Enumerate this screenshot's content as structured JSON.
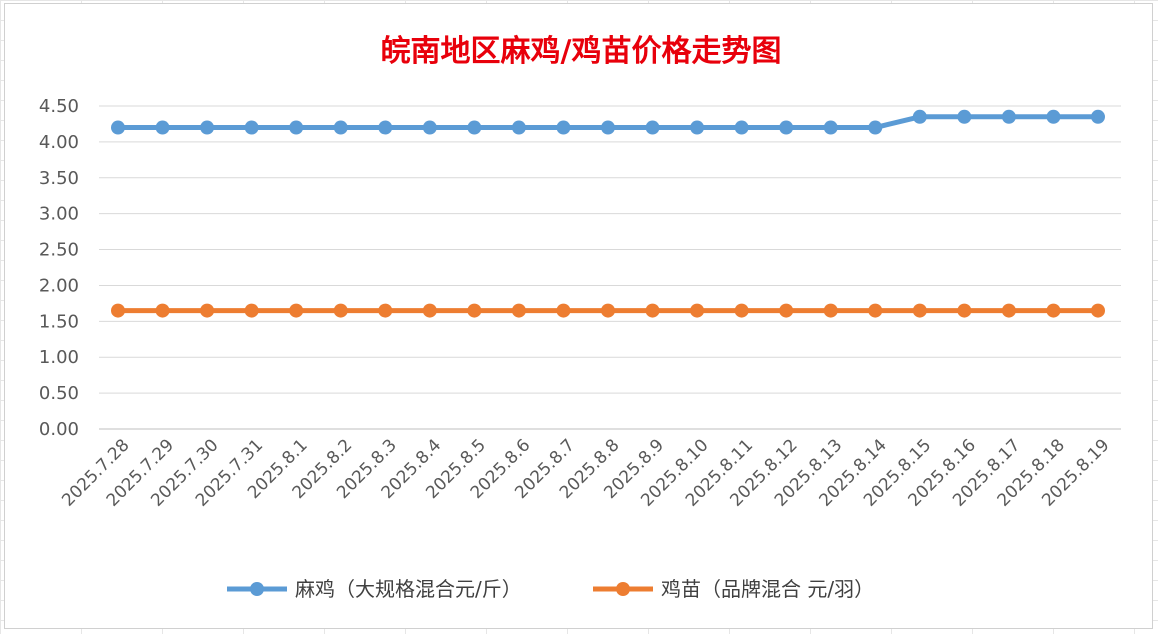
{
  "chart_data": {
    "type": "line",
    "title": "皖南地区麻鸡/鸡苗价格走势图",
    "xlabel": "",
    "ylabel": "",
    "categories": [
      "2025.7.28",
      "2025.7.29",
      "2025.7.30",
      "2025.7.31",
      "2025.8.1",
      "2025.8.2",
      "2025.8.3",
      "2025.8.4",
      "2025.8.5",
      "2025.8.6",
      "2025.8.7",
      "2025.8.8",
      "2025.8.9",
      "2025.8.10",
      "2025.8.11",
      "2025.8.12",
      "2025.8.13",
      "2025.8.14",
      "2025.8.15",
      "2025.8.16",
      "2025.8.17",
      "2025.8.18",
      "2025.8.19"
    ],
    "y_ticks": [
      "0.00",
      "0.50",
      "1.00",
      "1.50",
      "2.00",
      "2.50",
      "3.00",
      "3.50",
      "4.00",
      "4.50"
    ],
    "ylim": [
      0,
      4.5
    ],
    "grid": true,
    "legend_position": "bottom",
    "series": [
      {
        "name": "麻鸡（大规格混合元/斤）",
        "color": "#5b9bd5",
        "values": [
          4.2,
          4.2,
          4.2,
          4.2,
          4.2,
          4.2,
          4.2,
          4.2,
          4.2,
          4.2,
          4.2,
          4.2,
          4.2,
          4.2,
          4.2,
          4.2,
          4.2,
          4.2,
          4.35,
          4.35,
          4.35,
          4.35,
          4.35
        ]
      },
      {
        "name": "鸡苗（品牌混合 元/羽）",
        "color": "#ed7d31",
        "values": [
          1.65,
          1.65,
          1.65,
          1.65,
          1.65,
          1.65,
          1.65,
          1.65,
          1.65,
          1.65,
          1.65,
          1.65,
          1.65,
          1.65,
          1.65,
          1.65,
          1.65,
          1.65,
          1.65,
          1.65,
          1.65,
          1.65,
          1.65
        ]
      }
    ]
  }
}
